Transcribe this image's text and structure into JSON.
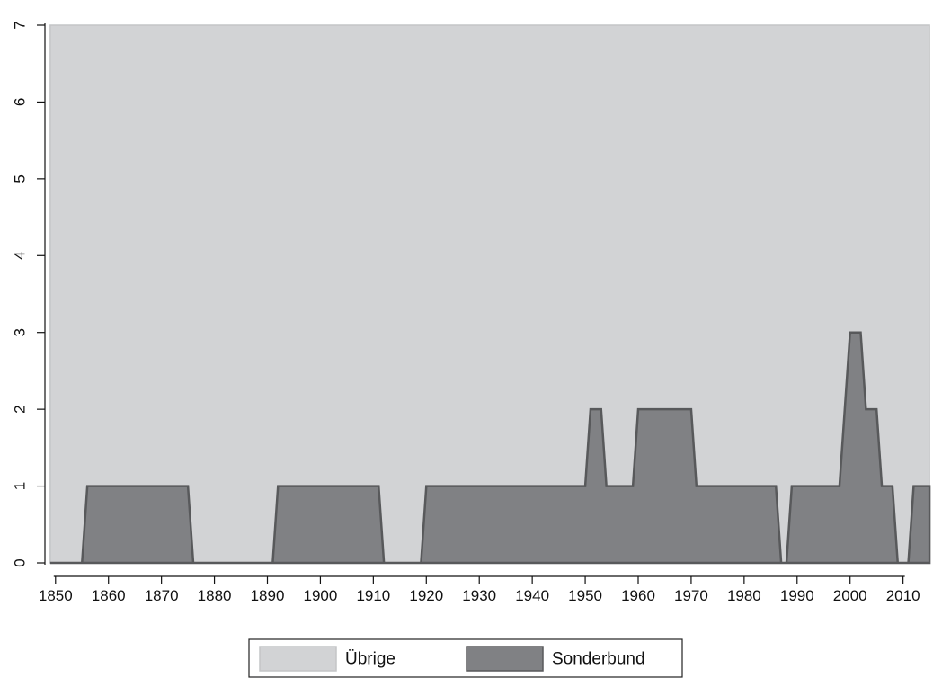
{
  "chart_data": {
    "type": "area",
    "x_range": [
      1848,
      2016
    ],
    "ylim": [
      0,
      7
    ],
    "x_ticks": [
      1850,
      1860,
      1870,
      1880,
      1890,
      1900,
      1910,
      1920,
      1930,
      1940,
      1950,
      1960,
      1970,
      1980,
      1990,
      2000,
      2010
    ],
    "y_ticks": [
      0,
      1,
      2,
      3,
      4,
      5,
      6,
      7
    ],
    "grid": false,
    "legend_position": "bottom",
    "legend": [
      "Übrige",
      "Sonderbund"
    ],
    "series": [
      {
        "name": "Übrige",
        "color": "#d2d3d5",
        "stroke": "#c4c5c7",
        "x": [
          1849,
          2015
        ],
        "y": [
          7,
          7
        ]
      },
      {
        "name": "Sonderbund",
        "color": "#808184",
        "stroke": "#58595b",
        "x": [
          1849,
          1855,
          1856,
          1875,
          1876,
          1891,
          1892,
          1911,
          1912,
          1919,
          1920,
          1950,
          1951,
          1953,
          1954,
          1955,
          1959,
          1960,
          1970,
          1971,
          1986,
          1987,
          1988,
          1989,
          1998,
          1999,
          2000,
          2002,
          2003,
          2004,
          2005,
          2006,
          2007,
          2008,
          2009,
          2010,
          2011,
          2012,
          2015
        ],
        "y": [
          0,
          0,
          1,
          1,
          0,
          0,
          1,
          1,
          0,
          0,
          1,
          1,
          2,
          2,
          1,
          1,
          1,
          2,
          2,
          1,
          1,
          0,
          0,
          1,
          1,
          2,
          3,
          3,
          2,
          2,
          2,
          1,
          1,
          1,
          0,
          0,
          0,
          1,
          1
        ]
      }
    ]
  }
}
